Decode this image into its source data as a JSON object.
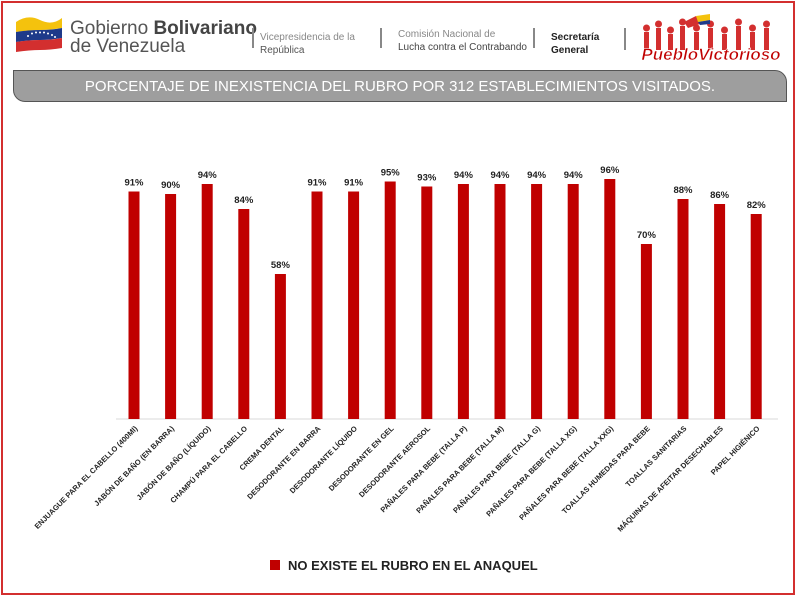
{
  "header": {
    "gov_line1_a": "Gobierno ",
    "gov_line1_b": "Bolivariano",
    "gov_line2": "de Venezuela",
    "vice_line1": "Vicepresidencia de la",
    "vice_line2": "República",
    "comision_line1": "Comisión Nacional de",
    "comision_line2": "Lucha contra el Contrabando",
    "secretaria_line1": "Secretaría",
    "secretaria_line2": "General",
    "logo_text": "PuebloVictorioso"
  },
  "title": "PORCENTAJE DE INEXISTENCIA DEL RUBRO POR 312 ESTABLECIMIENTOS VISITADOS.",
  "colors": {
    "bar": "#c00000",
    "frame": "#d32f2f",
    "title_bar": "#9e9e9e"
  },
  "chart_data": {
    "type": "bar",
    "title": "PORCENTAJE DE INEXISTENCIA DEL RUBRO POR 312 ESTABLECIMIENTOS VISITADOS.",
    "categories": [
      "ENJUAGUE PARA EL CABELLO (400Ml)",
      "JABÓN DE BAÑO (EN BARRA)",
      "JABÓN DE BAÑO (LÍQUIDO)",
      "CHAMPÚ PARA EL CABELLO",
      "CREMA DENTAL",
      "DESODORANTE EN BARRA",
      "DESODORANTE LÍQUIDO",
      "DESODORANTE EN GEL",
      "DESODORANTE AEROSOL",
      "PAÑALES PARA BEBE (TALLA P)",
      "PAÑALES PARA BEBE (TALLA M)",
      "PAÑALES PARA BEBE (TALLA G)",
      "PAÑALES PARA BEBE (TALLA XG)",
      "PAÑALES PARA BEBE (TALLA XXG)",
      "TOALLAS HUMEDAS PARA BEBE",
      "TOALLAS SANITARIAS",
      "MÁQUINAS DE AFEITAR DESECHABLES",
      "PAPEL HIGIÉNICO"
    ],
    "series": [
      {
        "name": "NO EXISTE EL RUBRO EN EL ANAQUEL",
        "values": [
          91,
          90,
          94,
          84,
          58,
          91,
          91,
          95,
          93,
          94,
          94,
          94,
          94,
          96,
          70,
          88,
          86,
          82
        ]
      }
    ],
    "value_labels": [
      "91%",
      "90%",
      "94%",
      "84%",
      "58%",
      "91%",
      "91%",
      "95%",
      "93%",
      "94%",
      "94%",
      "94%",
      "94%",
      "96%",
      "70%",
      "88%",
      "86%",
      "82%"
    ],
    "xlabel": "",
    "ylabel": "",
    "ylim": [
      0,
      100
    ],
    "grid": false,
    "legend_position": "bottom"
  }
}
